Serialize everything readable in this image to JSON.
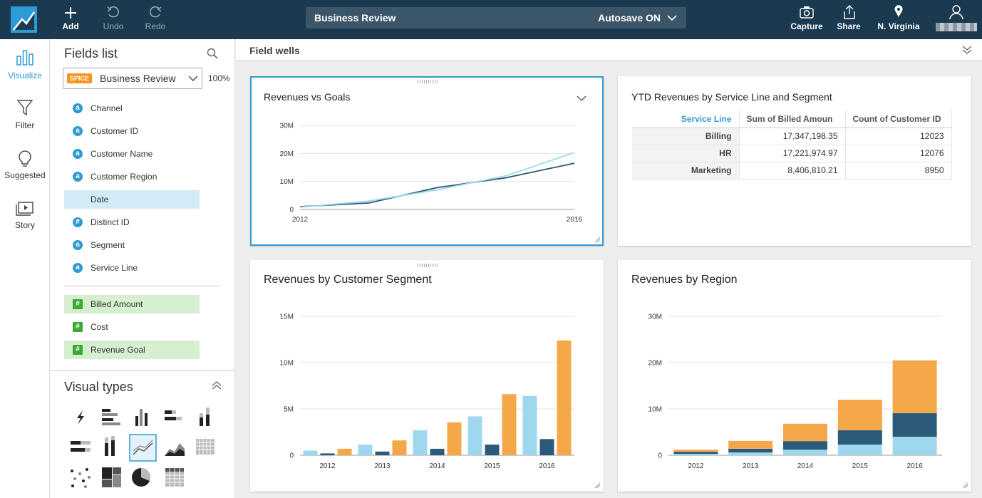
{
  "toolbar": {
    "add": "Add",
    "undo": "Undo",
    "redo": "Redo",
    "analysis_name": "Business Review",
    "autosave": "Autosave ON",
    "capture": "Capture",
    "share": "Share",
    "region": "N. Virginia"
  },
  "sidebar": [
    "Visualize",
    "Filter",
    "Suggested",
    "Story"
  ],
  "fields_panel": {
    "title": "Fields list",
    "dataset_badge": "SPICE",
    "dataset": "Business Review",
    "percent": "100%",
    "dimensions": [
      {
        "name": "Channel",
        "icon": "a",
        "selected": false
      },
      {
        "name": "Customer ID",
        "icon": "a",
        "selected": false
      },
      {
        "name": "Customer Name",
        "icon": "a",
        "selected": false
      },
      {
        "name": "Customer Region",
        "icon": "a",
        "selected": false
      },
      {
        "name": "Date",
        "icon": null,
        "selected": true
      },
      {
        "name": "Distinct ID",
        "icon": "#",
        "selected": false
      },
      {
        "name": "Segment",
        "icon": "a",
        "selected": false
      },
      {
        "name": "Service Line",
        "icon": "a",
        "selected": false
      }
    ],
    "measures": [
      {
        "name": "Billed Amount",
        "icon": "#",
        "selected": true
      },
      {
        "name": "Cost",
        "icon": "#",
        "selected": false
      },
      {
        "name": "Revenue Goal",
        "icon": "#",
        "selected": true
      }
    ],
    "visual_types_title": "Visual types"
  },
  "field_wells": "Field wells",
  "table": {
    "title": "YTD Revenues by Service Line and Segment",
    "columns": [
      "Service Line",
      "Sum of Billed Amoun",
      "Count of Customer ID"
    ],
    "rows": [
      [
        "Billing",
        "17,347,198.35",
        "12023"
      ],
      [
        "HR",
        "17,221,974.97",
        "12076"
      ],
      [
        "Marketing",
        "8,406,810.21",
        "8950"
      ]
    ]
  },
  "chart_data": [
    {
      "type": "line",
      "title": "Revenues vs Goals",
      "x": [
        2012,
        2013,
        2014,
        2015,
        2016
      ],
      "xlim": [
        2012,
        2016
      ],
      "xticks": [
        2012,
        2016
      ],
      "ylim": [
        0,
        30000000
      ],
      "yticks": [
        0,
        {
          "value": 10000000,
          "label": "10M"
        },
        {
          "value": 20000000,
          "label": "20M"
        },
        {
          "value": 30000000,
          "label": "30M"
        }
      ],
      "grid": true,
      "series": [
        {
          "color": "#2b5a7a",
          "values": [
            1000000,
            2300000,
            7800000,
            11300000,
            16500000
          ]
        },
        {
          "color": "#9fd8ee",
          "values": [
            800000,
            3000000,
            7000000,
            12000000,
            20300000
          ]
        }
      ]
    },
    {
      "type": "bar",
      "title": "Revenues by Customer Segment",
      "categories": [
        "2012",
        "2013",
        "2014",
        "2015",
        "2016"
      ],
      "ylim": [
        0,
        15000000
      ],
      "yticks": [
        0,
        {
          "value": 5000000,
          "label": "5M"
        },
        {
          "value": 10000000,
          "label": "10M"
        },
        {
          "value": 15000000,
          "label": "15M"
        }
      ],
      "grid": true,
      "stacked": false,
      "series": [
        {
          "color": "#9fd8ee",
          "values": [
            500000,
            1150000,
            2700000,
            4200000,
            6400000
          ]
        },
        {
          "color": "#2b5a7a",
          "values": [
            200000,
            400000,
            700000,
            1150000,
            1750000
          ]
        },
        {
          "color": "#f5a84a",
          "values": [
            700000,
            1600000,
            3550000,
            6600000,
            12400000
          ]
        }
      ]
    },
    {
      "type": "bar",
      "title": "Revenues by Region",
      "categories": [
        "2012",
        "2013",
        "2014",
        "2015",
        "2016"
      ],
      "ylim": [
        0,
        30000000
      ],
      "yticks": [
        0,
        {
          "value": 10000000,
          "label": "10M"
        },
        {
          "value": 20000000,
          "label": "20M"
        },
        {
          "value": 30000000,
          "label": "30M"
        }
      ],
      "grid": true,
      "stacked": true,
      "series": [
        {
          "color": "#9fd8ee",
          "values": [
            300000,
            600000,
            1200000,
            2300000,
            4000000
          ]
        },
        {
          "color": "#2b5a7a",
          "values": [
            450000,
            800000,
            1850000,
            3100000,
            5100000
          ]
        },
        {
          "color": "#f5a84a",
          "values": [
            450000,
            1700000,
            3750000,
            6600000,
            11400000
          ]
        }
      ]
    }
  ]
}
